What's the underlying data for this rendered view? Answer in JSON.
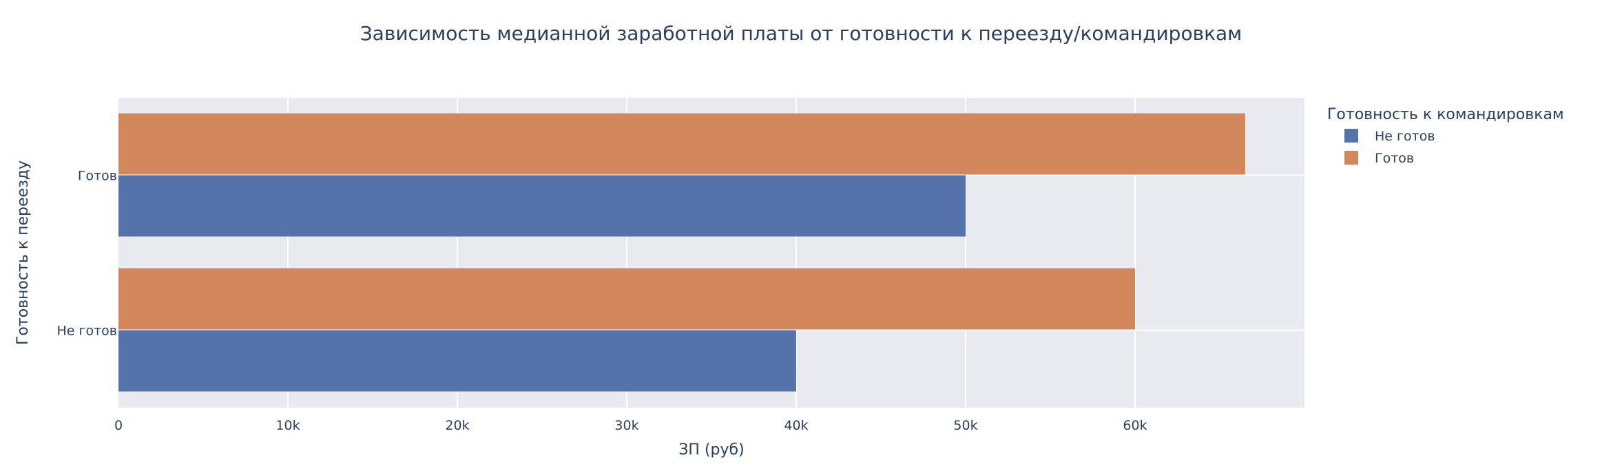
{
  "chart_data": {
    "type": "bar",
    "orientation": "horizontal",
    "title": "Зависимость медианной заработной платы от готовности к переезду/командировкам",
    "xlabel": "ЗП (руб)",
    "ylabel": "Готовность к переезду",
    "categories": [
      "Не готов",
      "Готов"
    ],
    "series": [
      {
        "name": "Не готов",
        "color": "#5572aa",
        "values": [
          40000,
          50000
        ]
      },
      {
        "name": "Готов",
        "color": "#d2875d",
        "values": [
          60000,
          66500
        ]
      }
    ],
    "xlim": [
      0,
      70000
    ],
    "xticks": [
      0,
      10000,
      20000,
      30000,
      40000,
      50000,
      60000
    ],
    "xtick_labels": [
      "0",
      "10k",
      "20k",
      "30k",
      "40k",
      "50k",
      "60k"
    ],
    "grid": true,
    "plot_background": "#e9eaf0",
    "legend": {
      "title": "Готовность к командировкам",
      "position": "right"
    }
  }
}
